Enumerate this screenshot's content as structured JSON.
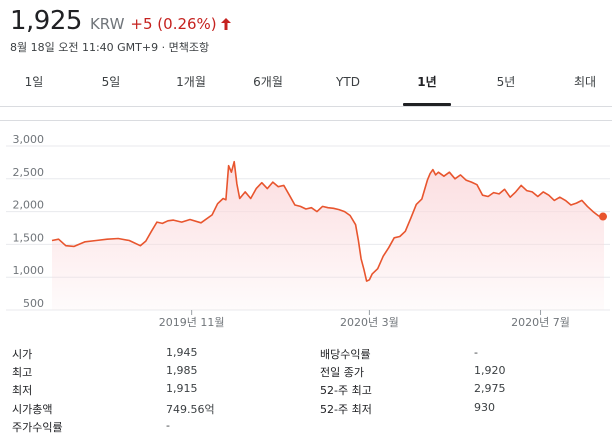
{
  "quote": {
    "price": "1,925",
    "currency": "KRW",
    "change": "+5 (0.26%)",
    "direction_icon": "arrow-up-icon",
    "color_down_up": "#c5221f"
  },
  "timestamp": "8월 18일 오전 11:40 GMT+9 · 면책조항",
  "tabs": [
    {
      "label": "1일",
      "active": false
    },
    {
      "label": "5일",
      "active": false
    },
    {
      "label": "1개월",
      "active": false
    },
    {
      "label": "6개월",
      "active": false
    },
    {
      "label": "YTD",
      "active": false
    },
    {
      "label": "1년",
      "active": true
    },
    {
      "label": "5년",
      "active": false
    },
    {
      "label": "최대",
      "active": false
    }
  ],
  "chart_data": {
    "type": "area",
    "line_color": "#e8552e",
    "fill_color": "#fbd9dc",
    "ylim": [
      500,
      3000
    ],
    "y_ticks": [
      {
        "value": 3000,
        "label": "3,000"
      },
      {
        "value": 2500,
        "label": "2,500"
      },
      {
        "value": 2000,
        "label": "2,000"
      },
      {
        "value": 1500,
        "label": "1,500"
      },
      {
        "value": 1000,
        "label": "1,000"
      },
      {
        "value": 500,
        "label": "500"
      }
    ],
    "x_ticks": [
      {
        "label": "2019년 11월",
        "t": 0.253
      },
      {
        "label": "2020년 3월",
        "t": 0.575
      },
      {
        "label": "2020년 7월",
        "t": 0.885
      }
    ],
    "grid": true,
    "x": [
      0,
      0.012,
      0.025,
      0.04,
      0.06,
      0.08,
      0.1,
      0.12,
      0.14,
      0.16,
      0.17,
      0.18,
      0.19,
      0.2,
      0.21,
      0.22,
      0.235,
      0.25,
      0.27,
      0.29,
      0.3,
      0.31,
      0.315,
      0.32,
      0.325,
      0.33,
      0.335,
      0.34,
      0.35,
      0.36,
      0.37,
      0.38,
      0.39,
      0.4,
      0.41,
      0.42,
      0.43,
      0.44,
      0.45,
      0.46,
      0.47,
      0.48,
      0.49,
      0.5,
      0.51,
      0.52,
      0.53,
      0.54,
      0.55,
      0.555,
      0.56,
      0.565,
      0.57,
      0.575,
      0.58,
      0.59,
      0.6,
      0.61,
      0.62,
      0.63,
      0.64,
      0.65,
      0.66,
      0.67,
      0.68,
      0.685,
      0.69,
      0.695,
      0.7,
      0.71,
      0.72,
      0.73,
      0.74,
      0.75,
      0.76,
      0.77,
      0.78,
      0.79,
      0.8,
      0.81,
      0.82,
      0.83,
      0.84,
      0.85,
      0.86,
      0.87,
      0.88,
      0.89,
      0.9,
      0.91,
      0.92,
      0.93,
      0.94,
      0.95,
      0.96,
      0.97,
      0.98,
      0.99,
      1.0
    ],
    "values": [
      1560,
      1580,
      1480,
      1470,
      1540,
      1560,
      1580,
      1590,
      1560,
      1480,
      1550,
      1700,
      1840,
      1820,
      1860,
      1870,
      1840,
      1880,
      1830,
      1950,
      2120,
      2200,
      2180,
      2700,
      2600,
      2760,
      2420,
      2200,
      2300,
      2200,
      2350,
      2440,
      2350,
      2450,
      2380,
      2400,
      2250,
      2100,
      2080,
      2040,
      2060,
      2000,
      2080,
      2060,
      2050,
      2030,
      2000,
      1940,
      1800,
      1560,
      1280,
      1120,
      940,
      960,
      1050,
      1130,
      1320,
      1450,
      1600,
      1620,
      1700,
      1900,
      2110,
      2190,
      2480,
      2580,
      2640,
      2560,
      2600,
      2540,
      2600,
      2500,
      2560,
      2480,
      2450,
      2410,
      2250,
      2230,
      2290,
      2270,
      2340,
      2220,
      2300,
      2400,
      2320,
      2300,
      2230,
      2300,
      2250,
      2170,
      2220,
      2170,
      2100,
      2130,
      2170,
      2080,
      2000,
      1935,
      1925
    ]
  },
  "stats": {
    "left": [
      {
        "label": "시가",
        "value": "1,945"
      },
      {
        "label": "최고",
        "value": "1,985"
      },
      {
        "label": "최저",
        "value": "1,915"
      },
      {
        "label": "시가총액",
        "value": "749.56억"
      },
      {
        "label": "주가수익률",
        "value": "-"
      }
    ],
    "right": [
      {
        "label": "배당수익률",
        "value": "-"
      },
      {
        "label": "전일 종가",
        "value": "1,920"
      },
      {
        "label": "52-주 최고",
        "value": "2,975"
      },
      {
        "label": "52-주 최저",
        "value": "930"
      }
    ]
  }
}
